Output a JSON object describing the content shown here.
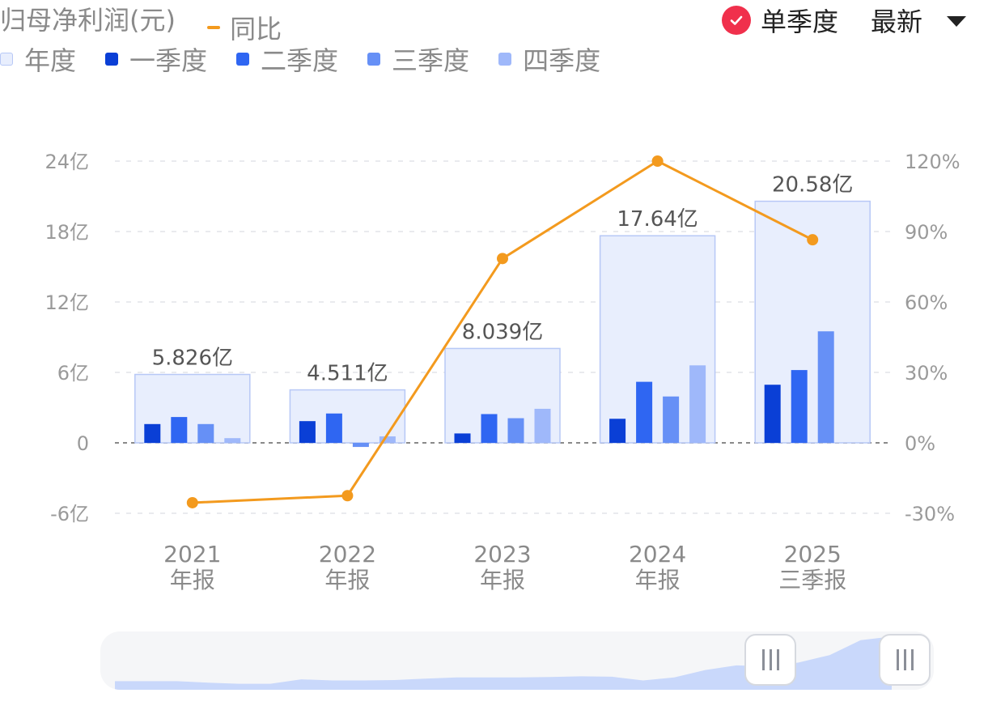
{
  "header": {
    "title": "归母净利润(元)",
    "yoy_label": "同比",
    "single_quarter_label": "单季度",
    "latest_label": "最新"
  },
  "legend": [
    {
      "label": "年度",
      "color": "#E8EEFD",
      "border": "#B7C8F6"
    },
    {
      "label": "一季度",
      "color": "#0A3FD6"
    },
    {
      "label": "二季度",
      "color": "#2F66F2"
    },
    {
      "label": "三季度",
      "color": "#6690F6"
    },
    {
      "label": "四季度",
      "color": "#9FB8FA"
    }
  ],
  "colors": {
    "annual_fill": "#E8EEFD",
    "annual_border": "#B7C8F6",
    "yoy_line": "#F39A1E",
    "check_badge": "#F0304C",
    "slider_area": "#C9D8FB"
  },
  "chart_data": {
    "type": "bar",
    "categories": [
      {
        "year": "2021",
        "period": "年报"
      },
      {
        "year": "2022",
        "period": "年报"
      },
      {
        "year": "2023",
        "period": "年报"
      },
      {
        "year": "2024",
        "period": "年报"
      },
      {
        "year": "2025",
        "period": "三季报"
      }
    ],
    "annual": {
      "values": [
        5.826,
        4.511,
        8.039,
        17.64,
        20.58
      ],
      "labels": [
        "5.826亿",
        "4.511亿",
        "8.039亿",
        "17.64亿",
        "20.58亿"
      ]
    },
    "series": [
      {
        "name": "一季度",
        "values": [
          1.6,
          1.85,
          0.8,
          2.05,
          4.95
        ]
      },
      {
        "name": "二季度",
        "values": [
          2.2,
          2.5,
          2.45,
          5.2,
          6.2
        ]
      },
      {
        "name": "三季度",
        "values": [
          1.6,
          -0.35,
          2.1,
          3.95,
          9.5
        ]
      },
      {
        "name": "四季度",
        "values": [
          0.4,
          0.55,
          2.9,
          6.6,
          null
        ]
      }
    ],
    "yoy": {
      "name": "同比",
      "values": [
        -25.5,
        -22.5,
        78.5,
        120.0,
        86.5
      ]
    },
    "left_axis": {
      "ticks": [
        "24亿",
        "18亿",
        "12亿",
        "6亿",
        "0",
        "-6亿"
      ],
      "range": [
        -6,
        24
      ]
    },
    "right_axis": {
      "ticks": [
        "120%",
        "90%",
        "60%",
        "30%",
        "0%",
        "-30%"
      ],
      "range": [
        -30,
        120
      ]
    },
    "grid": true
  }
}
